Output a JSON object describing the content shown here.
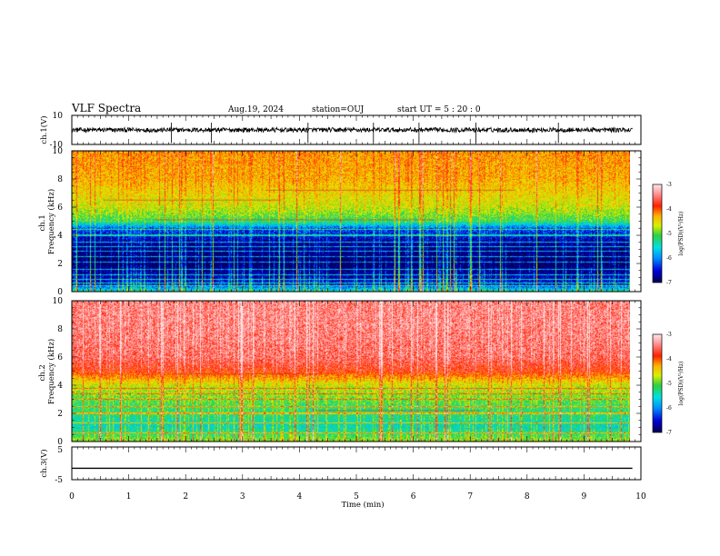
{
  "header": {
    "title": "VLF Spectra",
    "date": "Aug.19, 2024",
    "station": "station=OUJ",
    "start_ut": "start  UT  =   5  : 20 : 0"
  },
  "x_axis": {
    "label": "Time  (min)",
    "ticks": [
      "0",
      "1",
      "2",
      "3",
      "4",
      "5",
      "6",
      "7",
      "8",
      "9",
      "10"
    ]
  },
  "panels": {
    "ch1_wave": {
      "ylabel": "ch.1(V)",
      "ticks": [
        "10",
        "-10"
      ]
    },
    "ch1_spec": {
      "ylabel": "ch.1\nFrequency  (kHz)",
      "ticks": [
        "10",
        "8",
        "6",
        "4",
        "2",
        "0"
      ]
    },
    "ch2_spec": {
      "ylabel": "ch.2\nFrequency  (kHz)",
      "ticks": [
        "10",
        "8",
        "6",
        "4",
        "2",
        "0"
      ]
    },
    "ch3_wave": {
      "ylabel": "ch.3(V)",
      "ticks": [
        "5",
        "-5"
      ]
    }
  },
  "colorbar": {
    "label": "log(PSD)(V²/Hz)",
    "ticks": [
      "-3",
      "-4",
      "-5",
      "-6",
      "-7"
    ],
    "colors": [
      "#000050",
      "#0000d8",
      "#0090ff",
      "#00e0e0",
      "#30d040",
      "#d8f000",
      "#ffb000",
      "#ff2000",
      "#ff9090",
      "#ffe8e8"
    ]
  },
  "chart_data": {
    "type": "heatmap",
    "title": "VLF Spectra",
    "xlabel": "Time  (min)",
    "x_range": [
      0,
      10
    ],
    "data_end_min": 9.85,
    "station": "OUJ",
    "date": "Aug.19, 2024",
    "start_ut": "05:20:00",
    "channels": [
      {
        "name": "ch.1",
        "kind": "waveform",
        "ylabel": "ch.1(V)",
        "ylim": [
          -10,
          10
        ],
        "baseline_v": 0,
        "spike_times_min": [
          1.75,
          2.45,
          4.15,
          5.3,
          6.1,
          7.1,
          8.55
        ]
      },
      {
        "name": "ch.1",
        "kind": "spectrogram",
        "ylabel": "Frequency  (kHz)",
        "ylim_khz": [
          0,
          10
        ],
        "log_psd_profile": [
          {
            "f_khz": 0.0,
            "log_psd": -5.5
          },
          {
            "f_khz": 0.5,
            "log_psd": -6.5
          },
          {
            "f_khz": 2.0,
            "log_psd": -7.0
          },
          {
            "f_khz": 3.5,
            "log_psd": -6.8
          },
          {
            "f_khz": 4.5,
            "log_psd": -6.3
          },
          {
            "f_khz": 5.0,
            "log_psd": -5.3
          },
          {
            "f_khz": 6.0,
            "log_psd": -4.8
          },
          {
            "f_khz": 8.0,
            "log_psd": -4.4
          },
          {
            "f_khz": 10.0,
            "log_psd": -4.3
          }
        ],
        "narrowband_lines_khz": [
          0.4,
          0.6,
          0.9,
          1.2,
          1.6,
          2.1,
          2.5,
          2.9,
          3.2,
          3.5,
          4.0,
          4.4
        ],
        "feature_lines_khz": [
          7.2,
          6.5,
          5.1
        ]
      },
      {
        "name": "ch.2",
        "kind": "spectrogram",
        "ylabel": "Frequency  (kHz)",
        "ylim_khz": [
          0,
          10
        ],
        "log_psd_profile": [
          {
            "f_khz": 0.0,
            "log_psd": -5.0
          },
          {
            "f_khz": 1.0,
            "log_psd": -5.6
          },
          {
            "f_khz": 2.5,
            "log_psd": -5.3
          },
          {
            "f_khz": 4.0,
            "log_psd": -4.8
          },
          {
            "f_khz": 5.0,
            "log_psd": -3.9
          },
          {
            "f_khz": 6.0,
            "log_psd": -3.6
          },
          {
            "f_khz": 8.0,
            "log_psd": -3.5
          },
          {
            "f_khz": 10.0,
            "log_psd": -3.5
          }
        ],
        "narrowband_lines_khz": [
          0.6,
          1.3,
          2.0,
          2.5,
          3.0,
          3.4,
          3.8
        ],
        "feature_lines_khz": [
          4.8,
          2.2
        ]
      },
      {
        "name": "ch.3",
        "kind": "waveform",
        "ylabel": "ch.3(V)",
        "ylim": [
          -5,
          5
        ],
        "constant_v": -1.5
      }
    ],
    "colorbar": {
      "label": "log(PSD)(V²/Hz)",
      "range": [
        -7,
        -3
      ]
    }
  }
}
